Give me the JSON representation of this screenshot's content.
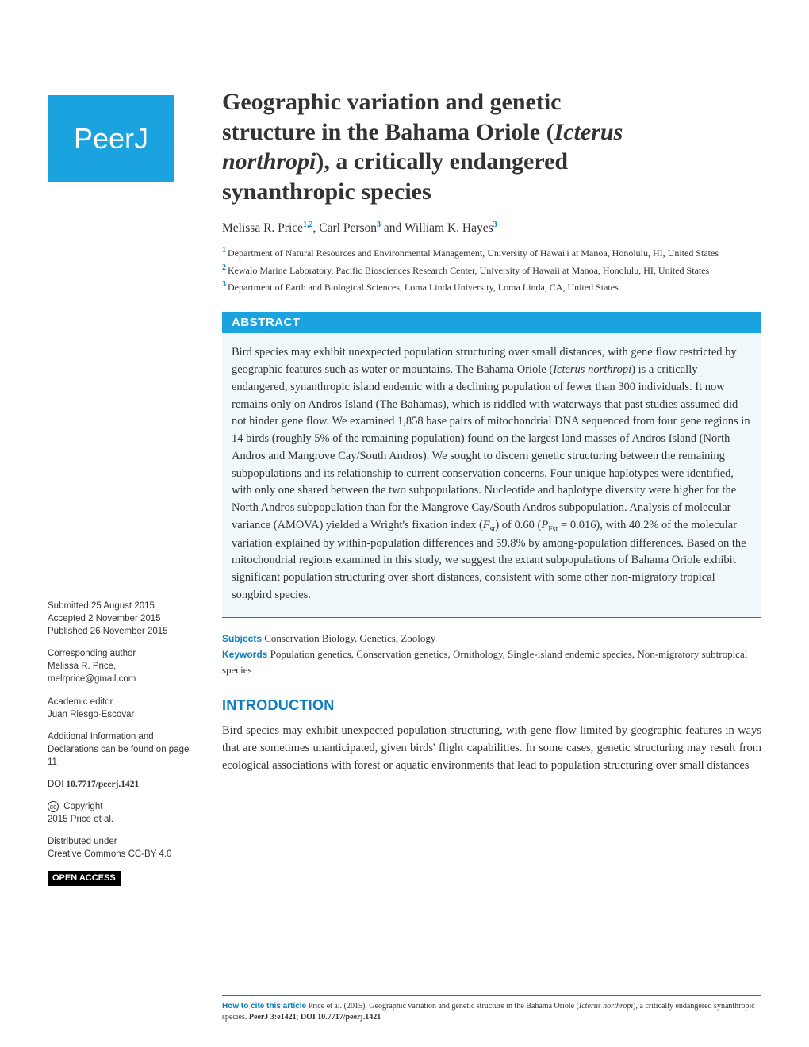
{
  "logo": {
    "text": "PeerJ"
  },
  "title": {
    "line1": "Geographic variation and genetic",
    "line2_a": "structure in the Bahama Oriole (",
    "line2_b": "Icterus",
    "line3_a": "northropi",
    "line3_b": "), a critically endangered",
    "line4": "synanthropic species"
  },
  "authors": {
    "a1": "Melissa R. Price",
    "a1_sup": "1,2",
    "a2": "Carl Person",
    "a2_sup": "3",
    "a3": "William K. Hayes",
    "a3_sup": "3",
    "sep": ", ",
    "and": " and "
  },
  "affiliations": [
    {
      "num": "1",
      "text": "Department of Natural Resources and Environmental Management, University of Hawai'i at Mānoa, Honolulu, HI, United States"
    },
    {
      "num": "2",
      "text": "Kewalo Marine Laboratory, Pacific Biosciences Research Center, University of Hawaii at Manoa, Honolulu, HI, United States"
    },
    {
      "num": "3",
      "text": "Department of Earth and Biological Sciences, Loma Linda University, Loma Linda, CA, United States"
    }
  ],
  "abstract": {
    "header": "ABSTRACT",
    "p1": "Bird species may exhibit unexpected population structuring over small distances, with gene flow restricted by geographic features such as water or mountains. The Bahama Oriole (",
    "p1_it1": "Icterus northropi",
    "p2": ") is a critically endangered, synanthropic island endemic with a declining population of fewer than 300 individuals. It now remains only on Andros Island (The Bahamas), which is riddled with waterways that past studies assumed did not hinder gene flow. We examined 1,858 base pairs of mitochondrial DNA sequenced from four gene regions in 14 birds (roughly 5% of the remaining population) found on the largest land masses of Andros Island (North Andros and Mangrove Cay/South Andros). We sought to discern genetic structuring between the remaining subpopulations and its relationship to current conservation concerns. Four unique haplotypes were identified, with only one shared between the two subpopulations. Nucleotide and haplotype diversity were higher for the North Andros subpopulation than for the Mangrove Cay/South Andros subpopulation. Analysis of molecular variance (AMOVA) yielded a Wright's fixation index (",
    "p2_it1": "F",
    "p2_sub1": "st",
    "p3": ") of 0.60 (",
    "p3_it1": "P",
    "p3_sub1": "Fst",
    "p4": " = 0.016), with 40.2% of the molecular variation explained by within-population differences and 59.8% by among-population differences. Based on the mitochondrial regions examined in this study, we suggest the extant subpopulations of Bahama Oriole exhibit significant population structuring over short distances, consistent with some other non-migratory tropical songbird species."
  },
  "subjects": {
    "label": "Subjects",
    "text": " Conservation Biology, Genetics, Zoology"
  },
  "keywords": {
    "label": "Keywords",
    "text": " Population genetics, Conservation genetics, Ornithology, Single-island endemic species, Non-migratory subtropical species"
  },
  "intro": {
    "header": "INTRODUCTION",
    "body": "Bird species may exhibit unexpected population structuring, with gene flow limited by geographic features in ways that are sometimes unanticipated, given birds' flight capabilities. In some cases, genetic structuring may result from ecological associations with forest or aquatic environments that lead to population structuring over small distances"
  },
  "sidebar": {
    "submitted_label": "Submitted",
    "submitted_value": " 25 August 2015",
    "accepted_label": "Accepted",
    "accepted_value": " 2 November 2015",
    "published_label": "Published",
    "published_value": " 26 November 2015",
    "corresponding_label": "Corresponding author",
    "corresponding_name": "Melissa R. Price,",
    "corresponding_email": "melrprice@gmail.com",
    "academic_label": "Academic editor",
    "academic_name": "Juan Riesgo-Escovar",
    "additional_text": "Additional Information and Declarations can be found on page 11",
    "doi_label": "DOI",
    "doi_value": " 10.7717/peerj.1421",
    "copyright_label": " Copyright",
    "copyright_value": "2015 Price et al.",
    "distributed_label": "Distributed under",
    "distributed_value": "Creative Commons CC-BY 4.0",
    "open_access": "OPEN ACCESS"
  },
  "citation": {
    "label": "How to cite this article",
    "text1": " Price et al. (2015), Geographic variation and genetic structure in the Bahama Oriole (",
    "italic1": "Icterus northropi",
    "text2": "), a critically endangered synanthropic species. ",
    "journal": "PeerJ 3:e1421",
    "sep": "; ",
    "doi": "DOI 10.7717/peerj.1421"
  },
  "colors": {
    "accent": "#1ba3e0",
    "link": "#0d7dbf",
    "text": "#333333",
    "abstract_bg": "#f0f8fc",
    "background": "#ffffff"
  }
}
